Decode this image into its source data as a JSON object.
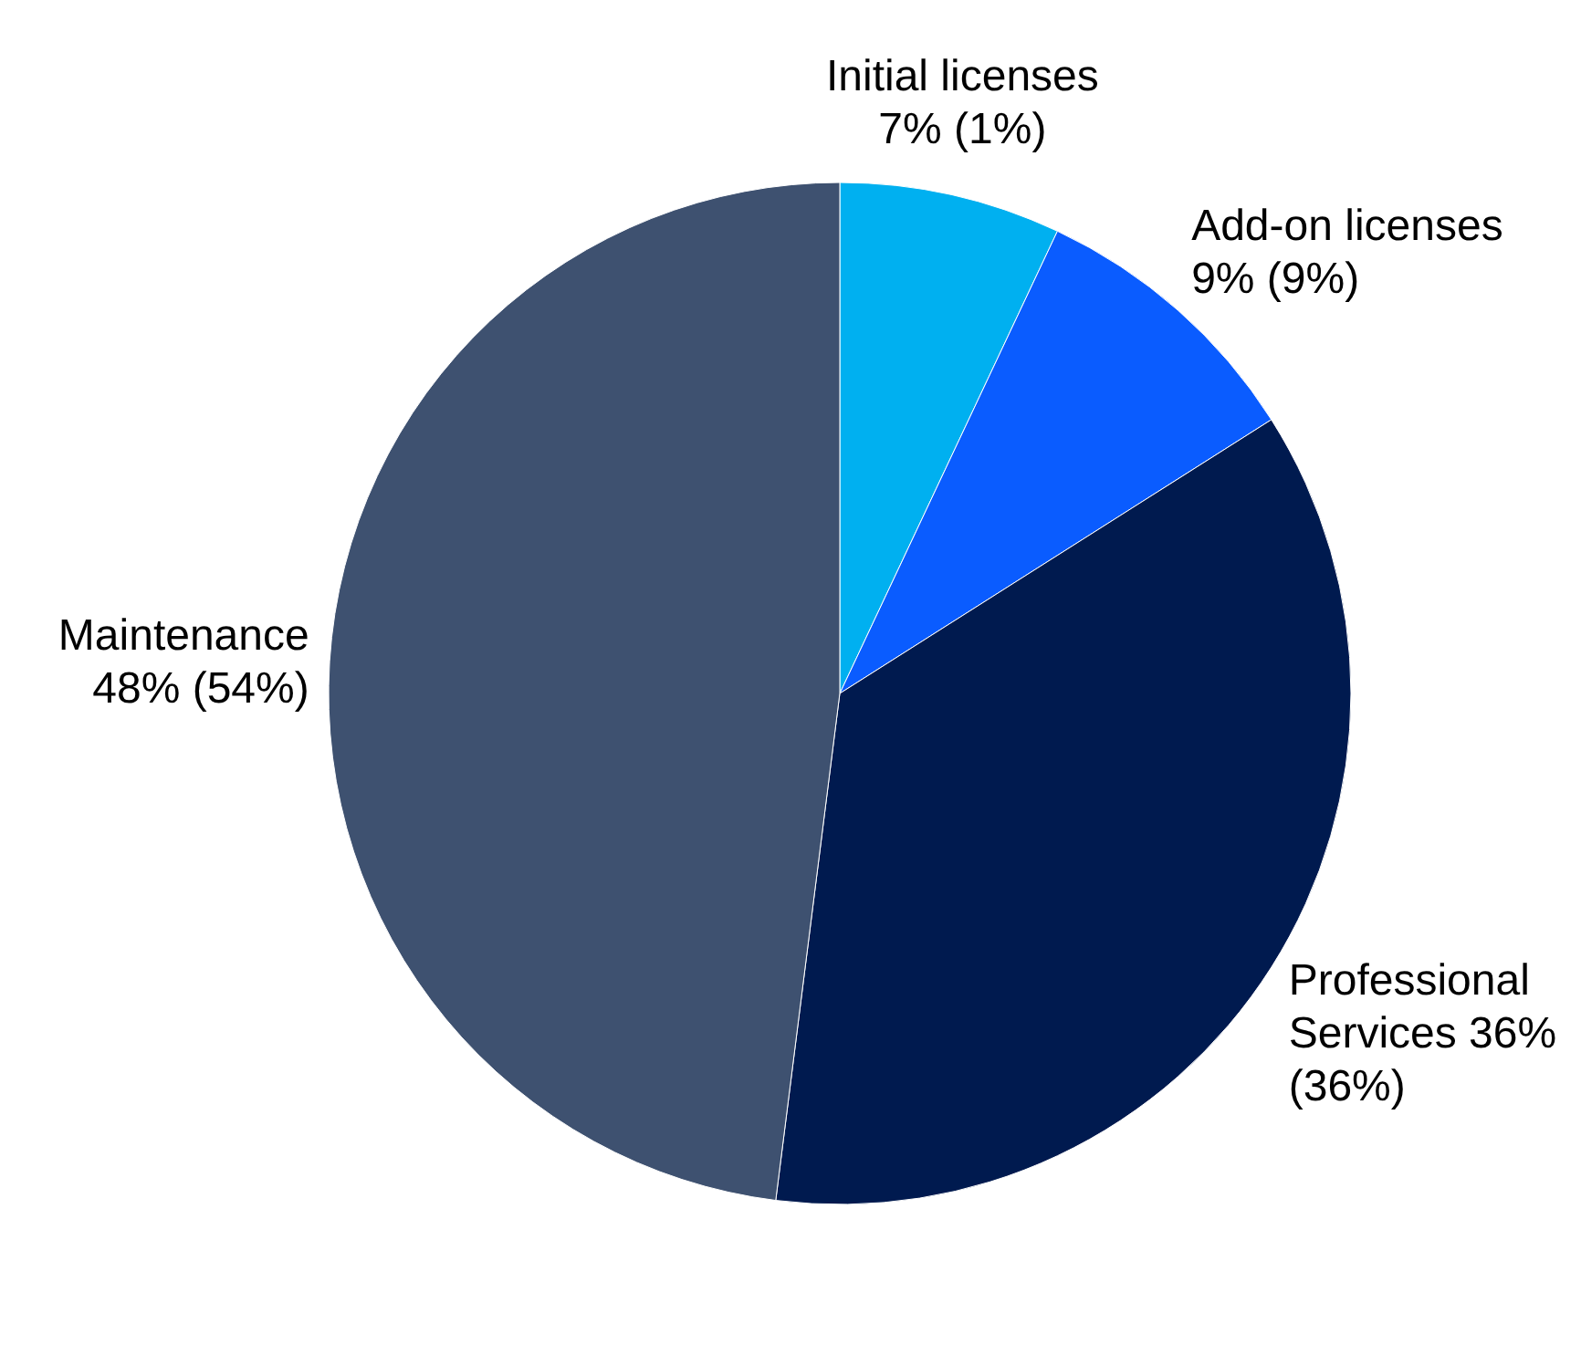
{
  "chart_data": {
    "type": "pie",
    "categories": [
      "Initial licenses",
      "Add-on licenses",
      "Professional Services",
      "Maintenance"
    ],
    "values": [
      7,
      9,
      36,
      48
    ],
    "value_labels": [
      "7% (1%)",
      "9% (9%)",
      "36% (36%)",
      "48% (54%)"
    ],
    "colors": [
      "#00b0f0",
      "#0a5cff",
      "#001a4f",
      "#3e5170"
    ]
  }
}
